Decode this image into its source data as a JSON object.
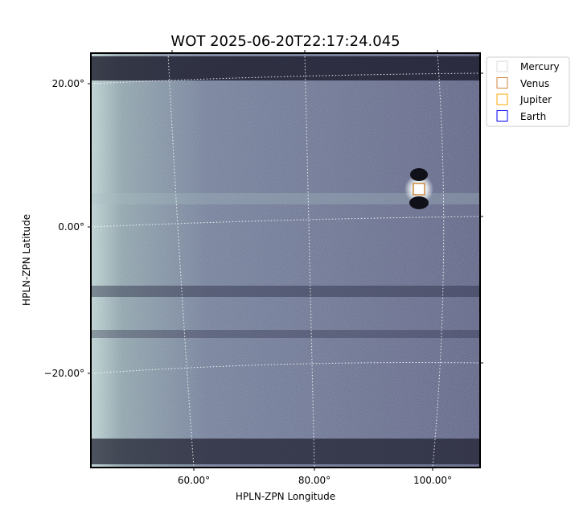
{
  "chart_data": {
    "type": "image",
    "title": "WOT 2025-06-20T22:17:24.045",
    "xlabel": "HPLN-ZPN Longitude",
    "ylabel": "HPLN-ZPN Latitude",
    "x_ticks": [
      "60.00°",
      "80.00°",
      "100.00°"
    ],
    "y_ticks": [
      "20.00°",
      "0.00°",
      "−20.00°"
    ],
    "grid": true,
    "colormap": "bone",
    "legend": {
      "placement": "outside-top-right",
      "entries": [
        {
          "name": "Mercury",
          "color": "#d9d9d9"
        },
        {
          "name": "Venus",
          "color": "#cd853f"
        },
        {
          "name": "Jupiter",
          "color": "#ffa500"
        },
        {
          "name": "Earth",
          "color": "#0000ff"
        }
      ]
    },
    "markers": [
      {
        "name": "Venus",
        "lon": 98,
        "lat": 5.5,
        "color": "#cd853f"
      }
    ]
  }
}
